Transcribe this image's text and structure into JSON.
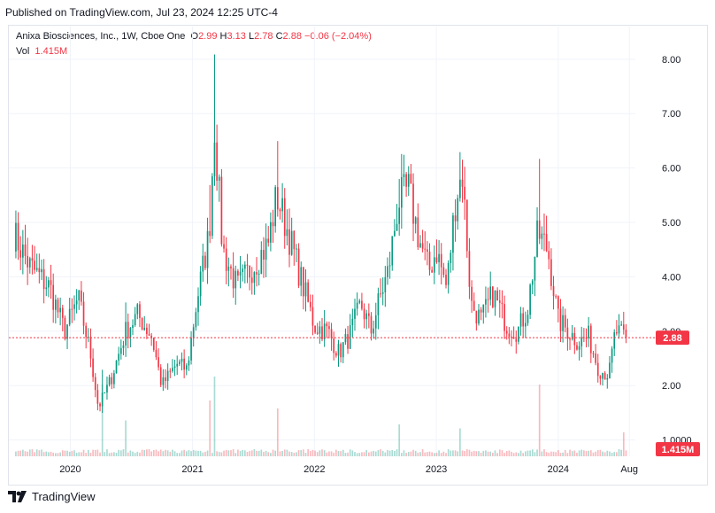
{
  "header": {
    "published": "Published on TradingView.com, Jul 23, 2024 12:25 UTC-4"
  },
  "legend": {
    "symbol": "Anixa Biosciences, Inc., 1W, Cboe One",
    "o_label": "O",
    "o_value": "2.99",
    "h_label": "H",
    "h_value": "3.13",
    "l_label": "L",
    "l_value": "2.78",
    "c_label": "C",
    "c_value": "2.88",
    "change": "−0.06 (−2.04%)",
    "vol_label": "Vol",
    "vol_value": "1.415M"
  },
  "footer": {
    "brand": "TradingView"
  },
  "colors": {
    "up": "#089981",
    "down": "#f23645",
    "grid": "#f0f3fa",
    "price_line": "#f23645"
  },
  "chart_data": {
    "type": "candlestick",
    "interval": "1W",
    "x_ticks": [
      "2020",
      "2021",
      "2022",
      "2023",
      "2024",
      "Aug"
    ],
    "y_ticks": [
      "8.00",
      "7.00",
      "6.00",
      "5.00",
      "4.00",
      "3.00",
      "2.00",
      "1.0000"
    ],
    "ylim": [
      0.7,
      8.6
    ],
    "last_price": "2.88",
    "last_volume": "1.415M",
    "anchors": [
      [
        "2019-07-15",
        4.8
      ],
      [
        "2019-09-01",
        4.2
      ],
      [
        "2019-11-01",
        3.8
      ],
      [
        "2019-12-15",
        3.0
      ],
      [
        "2020-01-25",
        3.6
      ],
      [
        "2020-03-01",
        2.6
      ],
      [
        "2020-03-25",
        1.6
      ],
      [
        "2020-05-01",
        2.1
      ],
      [
        "2020-06-15",
        3.0
      ],
      [
        "2020-07-20",
        3.3
      ],
      [
        "2020-09-01",
        2.9
      ],
      [
        "2020-10-01",
        2.0
      ],
      [
        "2020-11-15",
        2.4
      ],
      [
        "2020-12-15",
        2.3
      ],
      [
        "2021-01-15",
        3.6
      ],
      [
        "2021-02-20",
        4.8
      ],
      [
        "2021-03-08",
        6.8
      ],
      [
        "2021-04-01",
        4.5
      ],
      [
        "2021-05-15",
        3.8
      ],
      [
        "2021-07-01",
        4.2
      ],
      [
        "2021-08-15",
        4.6
      ],
      [
        "2021-09-10",
        5.5
      ],
      [
        "2021-10-15",
        4.8
      ],
      [
        "2021-11-20",
        4.0
      ],
      [
        "2022-01-01",
        3.1
      ],
      [
        "2022-02-10",
        3.0
      ],
      [
        "2022-03-15",
        2.6
      ],
      [
        "2022-04-15",
        2.9
      ],
      [
        "2022-05-20",
        3.5
      ],
      [
        "2022-06-20",
        3.0
      ],
      [
        "2022-07-15",
        3.6
      ],
      [
        "2022-08-10",
        4.1
      ],
      [
        "2022-09-10",
        5.4
      ],
      [
        "2022-10-10",
        5.6
      ],
      [
        "2022-11-10",
        4.7
      ],
      [
        "2022-12-10",
        4.1
      ],
      [
        "2023-01-01",
        4.5
      ],
      [
        "2023-02-01",
        3.8
      ],
      [
        "2023-03-01",
        5.5
      ],
      [
        "2023-03-20",
        5.9
      ],
      [
        "2023-04-15",
        3.5
      ],
      [
        "2023-05-15",
        3.2
      ],
      [
        "2023-06-20",
        3.7
      ],
      [
        "2023-08-01",
        3.1
      ],
      [
        "2023-09-01",
        3.0
      ],
      [
        "2023-10-01",
        3.4
      ],
      [
        "2023-11-01",
        4.8
      ],
      [
        "2023-12-01",
        4.5
      ],
      [
        "2024-01-01",
        3.2
      ],
      [
        "2024-02-01",
        3.0
      ],
      [
        "2024-03-01",
        2.8
      ],
      [
        "2024-04-01",
        2.9
      ],
      [
        "2024-05-01",
        2.3
      ],
      [
        "2024-06-01",
        2.2
      ],
      [
        "2024-06-20",
        3.0
      ],
      [
        "2024-07-22",
        2.88
      ]
    ],
    "volume_spikes": [
      [
        "2020-04-06",
        0.9
      ],
      [
        "2020-06-15",
        0.45
      ],
      [
        "2021-03-08",
        1.0
      ],
      [
        "2021-02-22",
        0.7
      ],
      [
        "2021-09-13",
        0.6
      ],
      [
        "2022-09-12",
        0.4
      ],
      [
        "2023-03-13",
        0.35
      ],
      [
        "2023-11-06",
        0.9
      ],
      [
        "2024-07-15",
        0.3
      ]
    ]
  }
}
